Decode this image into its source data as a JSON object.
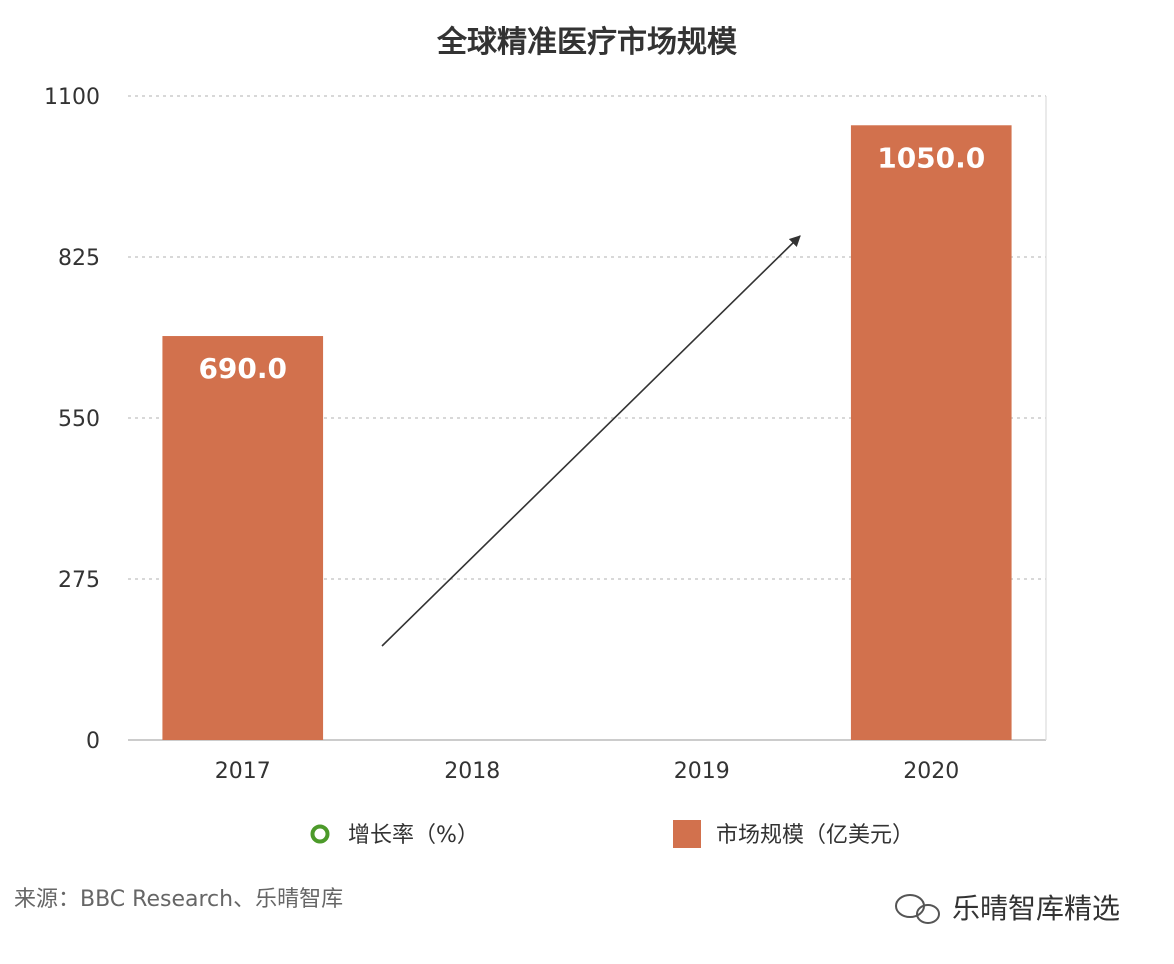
{
  "chart_data": {
    "type": "bar",
    "title": "全球精准医疗市场规模",
    "categories": [
      "2017",
      "2018",
      "2019",
      "2020"
    ],
    "series": [
      {
        "name": "市场规模（亿美元）",
        "values": [
          690.0,
          null,
          null,
          1050.0
        ],
        "color": "#D2714D"
      },
      {
        "name": "增长率（%）",
        "values": [
          null,
          null,
          null,
          null
        ],
        "color": "#4C9A2A"
      }
    ],
    "data_labels": [
      "690.0",
      "",
      "",
      "1050.0"
    ],
    "yticks": [
      "0",
      "275",
      "550",
      "825",
      "1100"
    ],
    "ylim": [
      0,
      1100
    ],
    "grid": true,
    "legend_position": "bottom",
    "annotation": "upward trend arrow"
  },
  "source_text": "来源：BBC Research、乐晴智库",
  "watermark": "乐晴智库精选",
  "watermark_icon": "wechat-icon"
}
